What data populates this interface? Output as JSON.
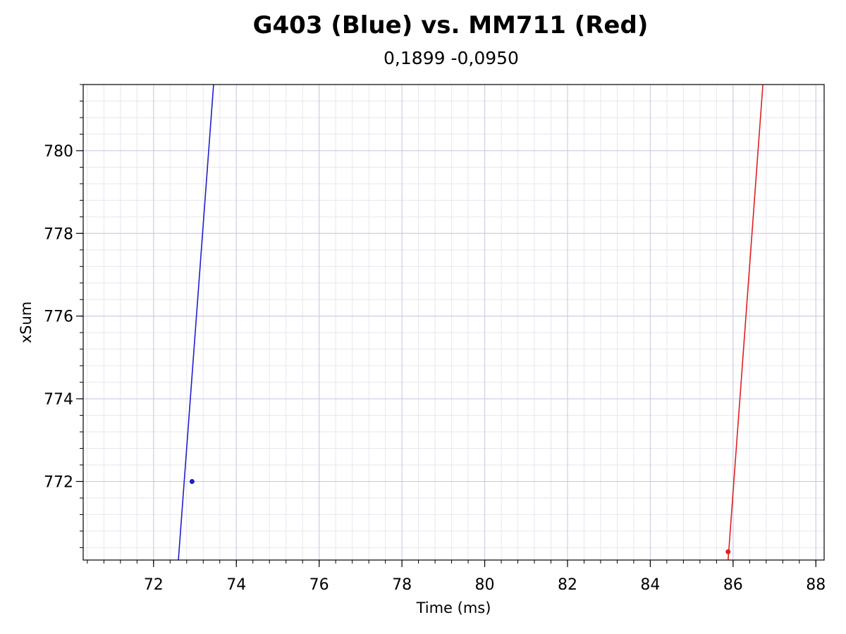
{
  "chart_data": {
    "type": "line",
    "title": "G403 (Blue) vs. MM711 (Red)",
    "subtitle": "0,1899 -0,0950",
    "xlabel": "Time (ms)",
    "ylabel": "xSum",
    "xlim": [
      70.3,
      88.2
    ],
    "ylim": [
      770.1,
      781.6
    ],
    "x_ticks": [
      72,
      74,
      76,
      78,
      80,
      82,
      84,
      86,
      88
    ],
    "y_ticks": [
      772,
      774,
      776,
      778,
      780
    ],
    "grid": true,
    "series": [
      {
        "color": "#1f1fcc",
        "line": [
          {
            "x": 72.6,
            "y": 770.1
          },
          {
            "x": 73.45,
            "y": 781.6
          }
        ],
        "points": [
          {
            "x": 72.93,
            "y": 772.0
          }
        ]
      },
      {
        "color": "#e02020",
        "line": [
          {
            "x": 85.88,
            "y": 770.1
          },
          {
            "x": 86.72,
            "y": 781.6
          }
        ],
        "points": [
          {
            "x": 85.88,
            "y": 770.3
          }
        ]
      }
    ]
  }
}
